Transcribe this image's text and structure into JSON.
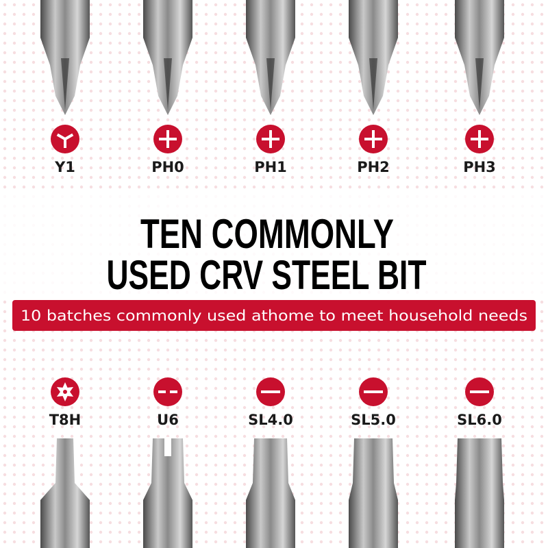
{
  "top": {
    "bits": [
      {
        "label": "Y1"
      },
      {
        "label": "PH0"
      },
      {
        "label": "PH1"
      },
      {
        "label": "PH2"
      },
      {
        "label": "PH3"
      }
    ]
  },
  "headline": {
    "lines": [
      "TEN COMMONLY",
      "USED CRV STEEL BIT"
    ]
  },
  "subtitle": "10 batches commonly used athome to meet household needs",
  "bottom": {
    "bits": [
      {
        "label": "T8H"
      },
      {
        "label": "U6"
      },
      {
        "label": "SL4.0"
      },
      {
        "label": "SL5.0"
      },
      {
        "label": "SL6.0"
      }
    ]
  }
}
